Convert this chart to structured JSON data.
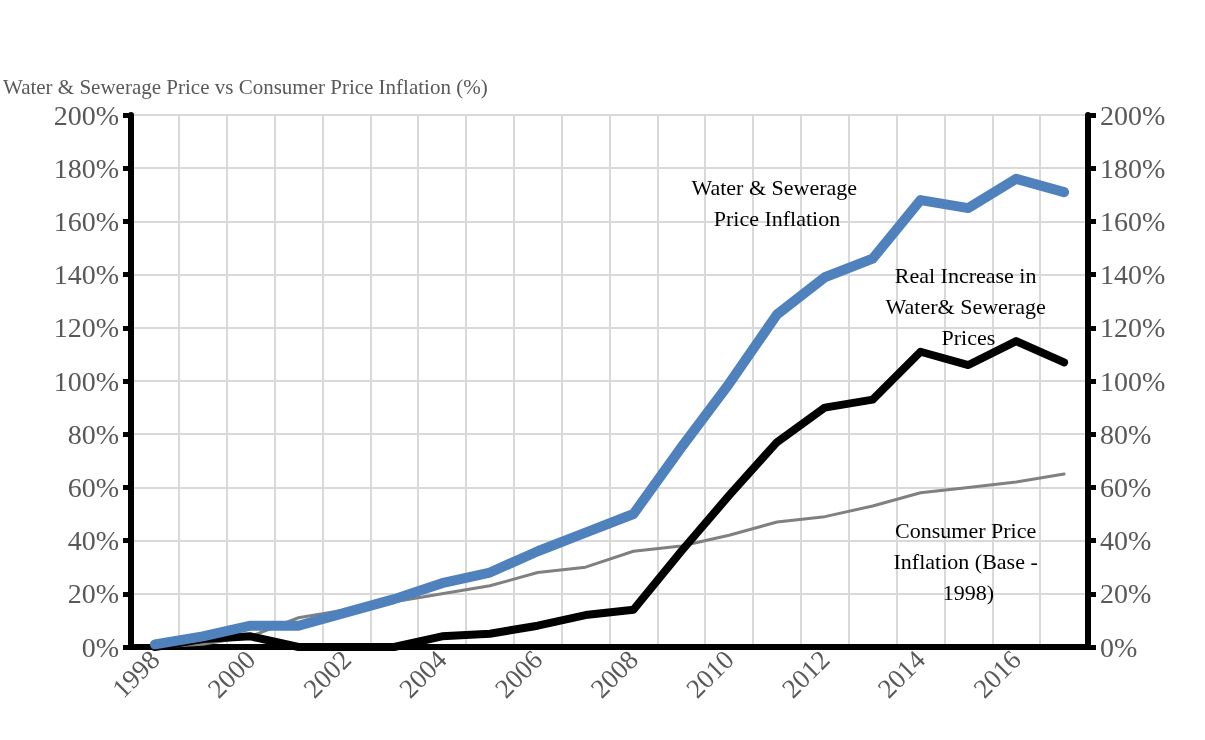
{
  "chart_data": {
    "type": "line",
    "ylabel": "Water & Sewerage Price vs Consumer Price Inflation (%)",
    "categories": [
      "1998",
      null,
      "2000",
      null,
      "2002",
      null,
      "2004",
      null,
      "2006",
      null,
      "2008",
      null,
      "2010",
      null,
      "2012",
      null,
      "2014",
      null,
      "2016",
      null
    ],
    "series": [
      {
        "name": "Water & Sewerage Price Inflation",
        "color": "#4f81bd",
        "values": [
          1,
          4,
          8,
          8,
          13,
          18,
          24,
          28,
          36,
          43,
          50,
          75,
          99,
          125,
          139,
          146,
          168,
          165,
          176,
          171
        ]
      },
      {
        "name": "Real Increase in Water& Sewerage Prices",
        "color": "#000000",
        "values": [
          0,
          3,
          4,
          0,
          0,
          0,
          4,
          5,
          8,
          12,
          14,
          36,
          57,
          77,
          90,
          93,
          111,
          106,
          115,
          107
        ]
      },
      {
        "name": "Consumer Price Inflation (Base - 1998)",
        "color": "#808080",
        "values": [
          0,
          1,
          4,
          11,
          14,
          17,
          20,
          23,
          28,
          30,
          36,
          38,
          42,
          47,
          49,
          53,
          58,
          60,
          62,
          65
        ]
      }
    ],
    "ylim": [
      0,
      200
    ],
    "yticks": [
      {
        "value": 0,
        "label": "0%"
      },
      {
        "value": 20,
        "label": "20%"
      },
      {
        "value": 40,
        "label": "40%"
      },
      {
        "value": 60,
        "label": "60%"
      },
      {
        "value": 80,
        "label": "80%"
      },
      {
        "value": 100,
        "label": "100%"
      },
      {
        "value": 120,
        "label": "120%"
      },
      {
        "value": 140,
        "label": "140%"
      },
      {
        "value": 160,
        "label": "160%"
      },
      {
        "value": 180,
        "label": "180%"
      },
      {
        "value": 200,
        "label": "200%"
      }
    ],
    "y2lim": [
      0,
      200
    ],
    "y2ticks": [
      {
        "value": 0,
        "label": "0%"
      },
      {
        "value": 20,
        "label": "20%"
      },
      {
        "value": 40,
        "label": "40%"
      },
      {
        "value": 60,
        "label": "60%"
      },
      {
        "value": 80,
        "label": "80%"
      },
      {
        "value": 100,
        "label": "100%"
      },
      {
        "value": 120,
        "label": "120%"
      },
      {
        "value": 140,
        "label": "140%"
      },
      {
        "value": 160,
        "label": "160%"
      },
      {
        "value": 180,
        "label": "180%"
      },
      {
        "value": 200,
        "label": "200%"
      }
    ],
    "grid": true,
    "legend": false,
    "marker": "none",
    "line_style": "solid"
  }
}
